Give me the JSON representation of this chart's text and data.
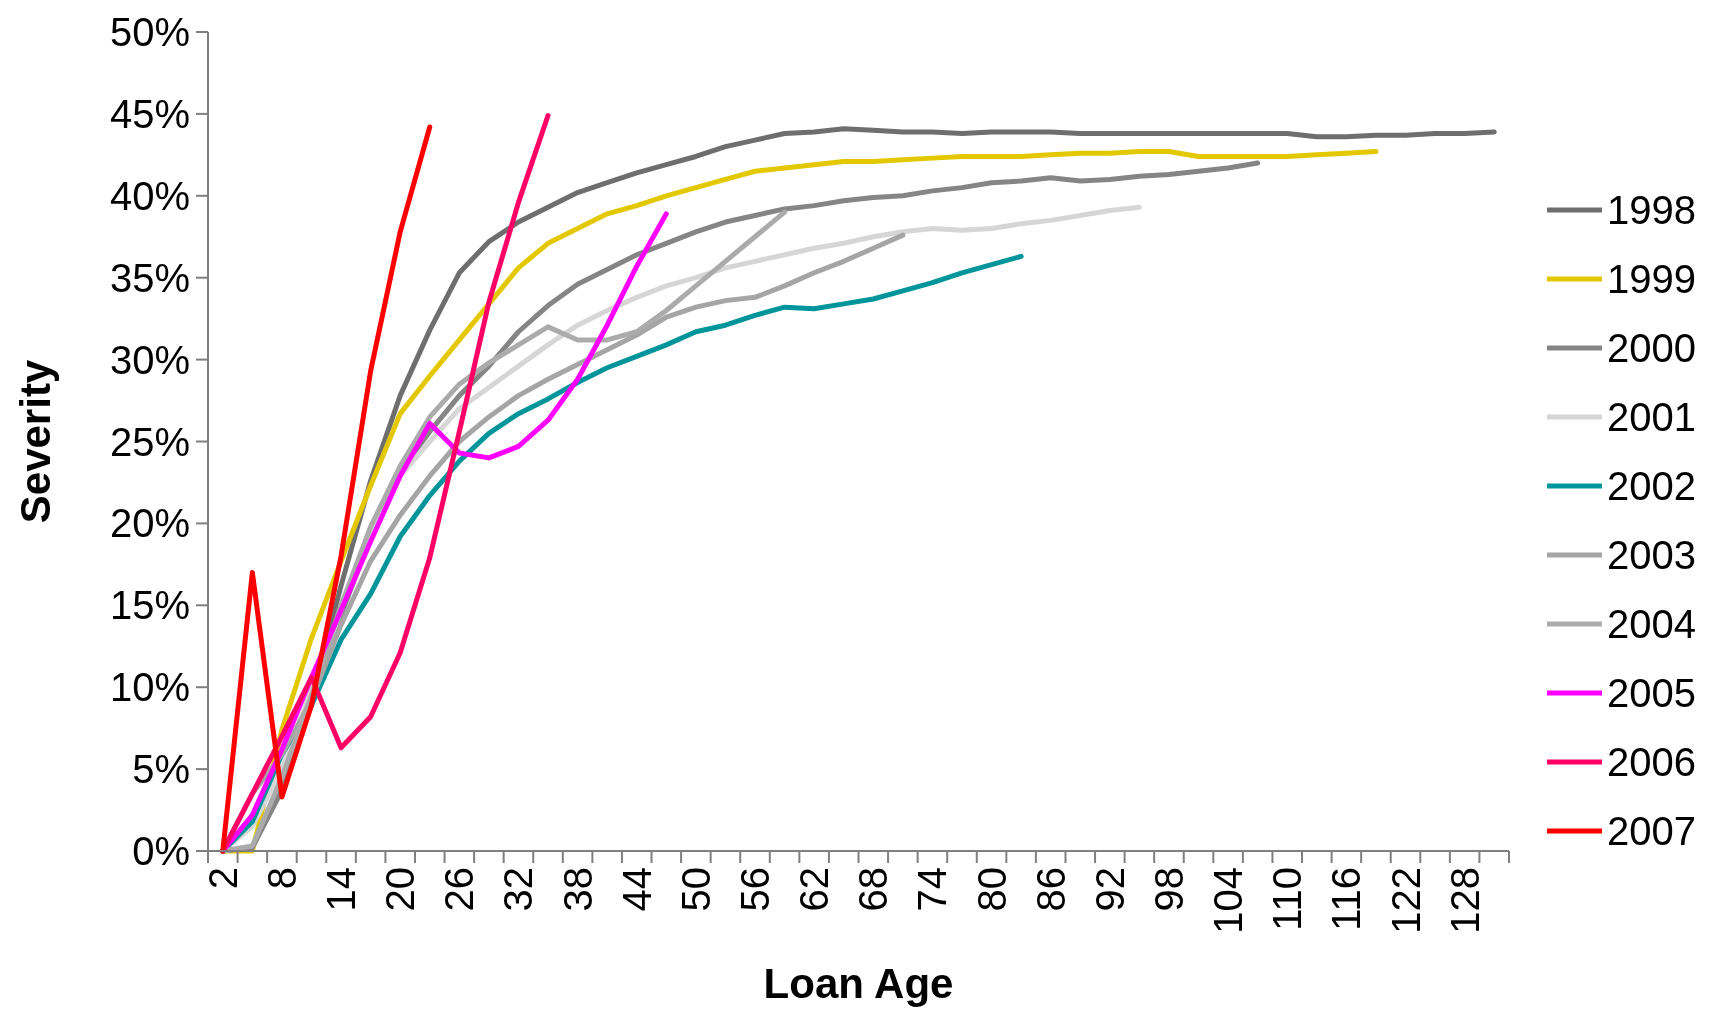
{
  "chart_data": {
    "type": "line",
    "xlabel": "Loan Age",
    "ylabel": "Severity",
    "categories": [
      "2",
      null,
      "8",
      null,
      "14",
      null,
      "20",
      null,
      "26",
      null,
      "32",
      null,
      "38",
      null,
      "44",
      null,
      "50",
      null,
      "56",
      null,
      "62",
      null,
      "68",
      null,
      "74",
      null,
      "80",
      null,
      "86",
      null,
      "92",
      null,
      "98",
      null,
      "104",
      null,
      "110",
      null,
      "116",
      null,
      "122",
      null,
      "128",
      null
    ],
    "ylim": [
      0,
      50
    ],
    "yticks": [
      {
        "value": 0,
        "label": "0%"
      },
      {
        "value": 5,
        "label": "5%"
      },
      {
        "value": 10,
        "label": "10%"
      },
      {
        "value": 15,
        "label": "15%"
      },
      {
        "value": 20,
        "label": "20%"
      },
      {
        "value": 25,
        "label": "25%"
      },
      {
        "value": 30,
        "label": "30%"
      },
      {
        "value": 35,
        "label": "35%"
      },
      {
        "value": 40,
        "label": "40%"
      },
      {
        "value": 45,
        "label": "45%"
      },
      {
        "value": 50,
        "label": "50%"
      }
    ],
    "legend": "right",
    "series": [
      {
        "name": "1998",
        "color": "#6e6e6e",
        "values": [
          0,
          0.2,
          4.3,
          9.2,
          16.2,
          22.6,
          27.8,
          31.8,
          35.3,
          37.2,
          38.4,
          39.3,
          40.2,
          40.8,
          41.4,
          41.9,
          42.4,
          43.0,
          43.4,
          43.8,
          43.9,
          44.1,
          44.0,
          43.9,
          43.9,
          43.8,
          43.9,
          43.9,
          43.9,
          43.8,
          43.8,
          43.8,
          43.8,
          43.8,
          43.8,
          43.8,
          43.8,
          43.6,
          43.6,
          43.7,
          43.7,
          43.8,
          43.8,
          43.9
        ]
      },
      {
        "name": "1999",
        "color": "#e3c800",
        "values": [
          0,
          0,
          7.4,
          13.0,
          17.7,
          22.3,
          26.7,
          29.0,
          31.2,
          33.4,
          35.6,
          37.1,
          38.0,
          38.9,
          39.4,
          40.0,
          40.5,
          41.0,
          41.5,
          41.7,
          41.9,
          42.1,
          42.1,
          42.2,
          42.3,
          42.4,
          42.4,
          42.4,
          42.5,
          42.6,
          42.6,
          42.7,
          42.7,
          42.4,
          42.4,
          42.4,
          42.4,
          42.5,
          42.6,
          42.7,
          null,
          null,
          null,
          null
        ]
      },
      {
        "name": "2000",
        "color": "#858585",
        "values": [
          0,
          0.2,
          3.7,
          8.9,
          14.4,
          19.2,
          23.2,
          25.6,
          27.8,
          29.6,
          31.7,
          33.3,
          34.6,
          35.5,
          36.4,
          37.1,
          37.8,
          38.4,
          38.8,
          39.2,
          39.4,
          39.7,
          39.9,
          40.0,
          40.3,
          40.5,
          40.8,
          40.9,
          41.1,
          40.9,
          41.0,
          41.2,
          41.3,
          41.5,
          41.7,
          42.0,
          null,
          null,
          null,
          null,
          null,
          null,
          null,
          null
        ]
      },
      {
        "name": "2001",
        "color": "#d6d6d6",
        "values": [
          0,
          1.5,
          5.0,
          9.8,
          14.7,
          19.4,
          22.9,
          25.0,
          27.0,
          28.3,
          29.6,
          30.9,
          32.1,
          33.0,
          33.8,
          34.5,
          35.0,
          35.6,
          36.0,
          36.4,
          36.8,
          37.1,
          37.5,
          37.8,
          38.0,
          37.9,
          38.0,
          38.3,
          38.5,
          38.8,
          39.1,
          39.3,
          null,
          null,
          null,
          null,
          null,
          null,
          null,
          null,
          null,
          null,
          null,
          null
        ]
      },
      {
        "name": "2002",
        "color": "#00959a",
        "values": [
          0,
          1.8,
          5.9,
          8.9,
          12.9,
          15.7,
          19.2,
          21.7,
          23.8,
          25.5,
          26.7,
          27.6,
          28.6,
          29.5,
          30.2,
          30.9,
          31.7,
          32.1,
          32.7,
          33.2,
          33.1,
          33.4,
          33.7,
          34.2,
          34.7,
          35.3,
          35.8,
          36.3,
          null,
          null,
          null,
          null,
          null,
          null,
          null,
          null,
          null,
          null,
          null,
          null,
          null,
          null,
          null,
          null
        ]
      },
      {
        "name": "2003",
        "color": "#a5a5a5",
        "values": [
          0,
          3.5,
          5.9,
          9.2,
          13.8,
          17.7,
          20.5,
          22.9,
          25.0,
          26.5,
          27.8,
          28.8,
          29.7,
          30.6,
          31.5,
          32.6,
          33.2,
          33.6,
          33.8,
          34.5,
          35.3,
          36.0,
          36.8,
          37.6,
          null,
          null,
          null,
          null,
          null,
          null,
          null,
          null,
          null,
          null,
          null,
          null,
          null,
          null,
          null,
          null,
          null,
          null,
          null,
          null
        ]
      },
      {
        "name": "2004",
        "color": "#ababab",
        "values": [
          0,
          0.3,
          4.5,
          9.5,
          15.0,
          19.8,
          23.5,
          26.5,
          28.5,
          29.8,
          30.9,
          32.0,
          31.2,
          31.2,
          31.7,
          33.0,
          34.5,
          36.0,
          37.5,
          39.0,
          null,
          null,
          null,
          null,
          null,
          null,
          null,
          null,
          null,
          null,
          null,
          null,
          null,
          null,
          null,
          null,
          null,
          null,
          null,
          null,
          null,
          null,
          null,
          null
        ]
      },
      {
        "name": "2005",
        "color": "#ff00ff",
        "values": [
          0,
          2.2,
          6.2,
          10.6,
          14.7,
          18.9,
          22.9,
          26.1,
          24.3,
          24.0,
          24.7,
          26.3,
          28.8,
          32.1,
          35.7,
          38.9,
          null,
          null,
          null,
          null,
          null,
          null,
          null,
          null,
          null,
          null,
          null,
          null,
          null,
          null,
          null,
          null,
          null,
          null,
          null,
          null,
          null,
          null,
          null,
          null,
          null,
          null,
          null,
          null
        ]
      },
      {
        "name": "2006",
        "color": "#ff0066",
        "values": [
          0,
          3.5,
          7.0,
          10.6,
          6.3,
          8.2,
          12.1,
          17.9,
          25.6,
          33.5,
          39.6,
          44.9,
          null,
          null,
          null,
          null,
          null,
          null,
          null,
          null,
          null,
          null,
          null,
          null,
          null,
          null,
          null,
          null,
          null,
          null,
          null,
          null,
          null,
          null,
          null,
          null,
          null,
          null,
          null,
          null,
          null,
          null,
          null,
          null
        ]
      },
      {
        "name": "2007",
        "color": "#ff0000",
        "values": [
          0,
          17.0,
          3.3,
          8.9,
          18.0,
          29.3,
          37.8,
          44.2,
          null,
          null,
          null,
          null,
          null,
          null,
          null,
          null,
          null,
          null,
          null,
          null,
          null,
          null,
          null,
          null,
          null,
          null,
          null,
          null,
          null,
          null,
          null,
          null,
          null,
          null,
          null,
          null,
          null,
          null,
          null,
          null,
          null,
          null,
          null,
          null
        ]
      }
    ]
  }
}
